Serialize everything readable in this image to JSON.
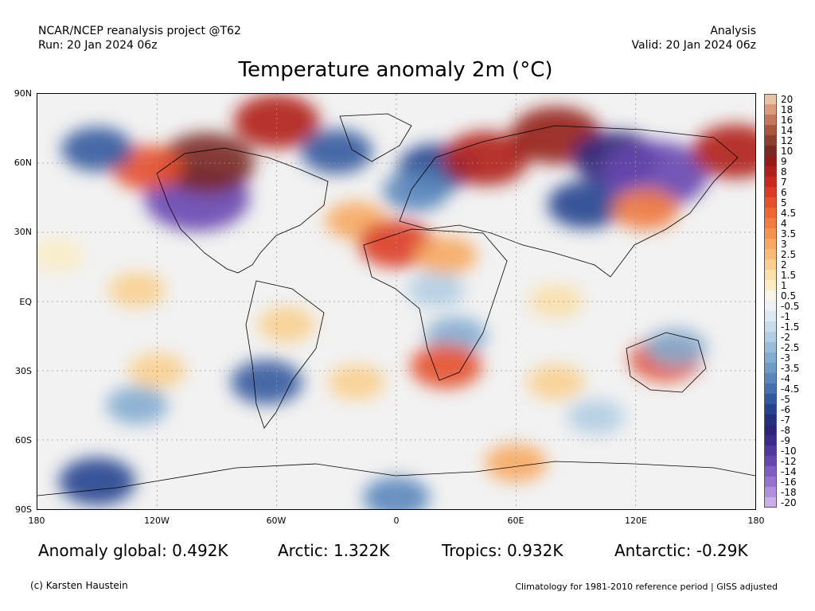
{
  "header": {
    "project": "NCAR/NCEP reanalysis project @T62",
    "run": "Run: 20 Jan 2024 06z",
    "product": "Analysis",
    "valid": "Valid: 20 Jan 2024 06z"
  },
  "title": "Temperature anomaly 2m (°C)",
  "axes": {
    "lat_labels": [
      "90N",
      "60N",
      "30N",
      "EQ",
      "30S",
      "60S",
      "90S"
    ],
    "lon_labels": [
      "180",
      "120W",
      "60W",
      "0",
      "60E",
      "120E",
      "180"
    ]
  },
  "colorbar": {
    "labels": [
      "20",
      "18",
      "16",
      "14",
      "12",
      "10",
      "9",
      "8",
      "7",
      "6",
      "5",
      "4.5",
      "4",
      "3.5",
      "3",
      "2.5",
      "2",
      "1.5",
      "1",
      "0.5",
      "-0.5",
      "-1",
      "-1.5",
      "-2",
      "-2.5",
      "-3",
      "-3.5",
      "-4",
      "-4.5",
      "-5",
      "-6",
      "-7",
      "-8",
      "-9",
      "-10",
      "-12",
      "-14",
      "-16",
      "-18",
      "-20"
    ],
    "colors": [
      "#e8c3a8",
      "#d99b7c",
      "#c4775a",
      "#a8573e",
      "#8e4030",
      "#7a2a22",
      "#941c18",
      "#b0201a",
      "#c8281e",
      "#dc3a24",
      "#e6502c",
      "#ee6634",
      "#f27c40",
      "#f5924f",
      "#f7a862",
      "#f8bc78",
      "#f9cf8f",
      "#fadfa8",
      "#fbecc4",
      "#f8f4e6",
      "#eef1f5",
      "#dce9f2",
      "#c8dcec",
      "#b1cde3",
      "#9bbdda",
      "#84acd0",
      "#6e9ac6",
      "#5986bb",
      "#4571ae",
      "#335a9f",
      "#26428f",
      "#22307f",
      "#2c2478",
      "#3d2b8c",
      "#50389d",
      "#6647b0",
      "#7e5cc2",
      "#9773d0",
      "#b08fdc",
      "#c9aee8"
    ]
  },
  "map_features": {
    "anomaly_blobs": [
      {
        "lon": -100,
        "lat": 45,
        "value": -12
      },
      {
        "lon": -95,
        "lat": 60,
        "value": 10
      },
      {
        "lon": -125,
        "lat": 58,
        "value": 5
      },
      {
        "lon": -150,
        "lat": 66,
        "value": -5
      },
      {
        "lon": -60,
        "lat": 78,
        "value": 8
      },
      {
        "lon": -30,
        "lat": 65,
        "value": -5
      },
      {
        "lon": -20,
        "lat": 35,
        "value": 3
      },
      {
        "lon": 0,
        "lat": 25,
        "value": 6
      },
      {
        "lon": 20,
        "lat": 58,
        "value": -6
      },
      {
        "lon": 10,
        "lat": 48,
        "value": -4
      },
      {
        "lon": 45,
        "lat": 62,
        "value": 8
      },
      {
        "lon": 80,
        "lat": 72,
        "value": 9
      },
      {
        "lon": 110,
        "lat": 62,
        "value": -8
      },
      {
        "lon": 95,
        "lat": 42,
        "value": -6
      },
      {
        "lon": 130,
        "lat": 55,
        "value": -12
      },
      {
        "lon": 125,
        "lat": 40,
        "value": 4
      },
      {
        "lon": 170,
        "lat": 65,
        "value": 8
      },
      {
        "lon": 25,
        "lat": 20,
        "value": 3
      },
      {
        "lon": 20,
        "lat": 5,
        "value": -2
      },
      {
        "lon": 30,
        "lat": -15,
        "value": -3
      },
      {
        "lon": 25,
        "lat": -28,
        "value": 5
      },
      {
        "lon": 135,
        "lat": -25,
        "value": 5
      },
      {
        "lon": 140,
        "lat": -20,
        "value": -3
      },
      {
        "lon": -65,
        "lat": -35,
        "value": -5
      },
      {
        "lon": -55,
        "lat": -10,
        "value": 2
      },
      {
        "lon": -120,
        "lat": -30,
        "value": 2
      },
      {
        "lon": -130,
        "lat": -45,
        "value": -3
      },
      {
        "lon": 80,
        "lat": 0,
        "value": 1.5
      },
      {
        "lon": 80,
        "lat": -35,
        "value": 2
      },
      {
        "lon": 100,
        "lat": -50,
        "value": -2
      },
      {
        "lon": -20,
        "lat": -35,
        "value": 2
      },
      {
        "lon": 0,
        "lat": -85,
        "value": -4
      },
      {
        "lon": -150,
        "lat": -78,
        "value": -6
      },
      {
        "lon": 60,
        "lat": -70,
        "value": 3
      },
      {
        "lon": -130,
        "lat": 5,
        "value": 2
      },
      {
        "lon": -170,
        "lat": 20,
        "value": 1
      }
    ]
  },
  "stats": {
    "global": "Anomaly global: 0.492K",
    "arctic": "Arctic: 1.322K",
    "tropics": "Tropics: 0.932K",
    "antarctic": "Antarctic: -0.29K"
  },
  "footer": {
    "credit": "(c) Karsten Haustein",
    "note": "Climatology for 1981-2010 reference period | GISS adjusted"
  }
}
